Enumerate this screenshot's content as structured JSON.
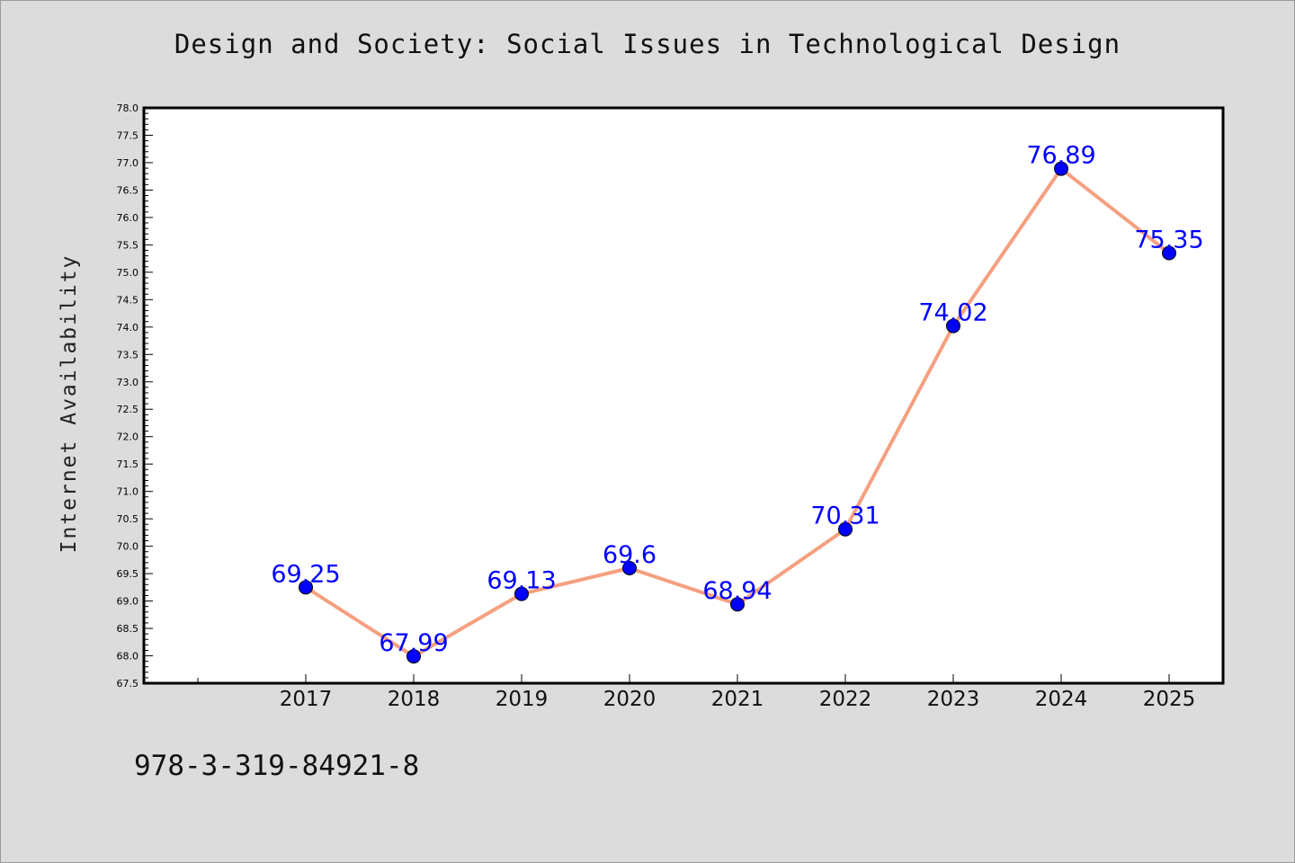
{
  "chart_data": {
    "type": "line",
    "title": "Design and Society: Social Issues in Technological Design",
    "xlabel": "",
    "ylabel": "Internet Availability",
    "categories": [
      "2017",
      "2018",
      "2019",
      "2020",
      "2021",
      "2022",
      "2023",
      "2024",
      "2025"
    ],
    "series": [
      {
        "values": [
          69.25,
          67.99,
          69.13,
          69.6,
          68.94,
          70.31,
          74.02,
          76.89,
          75.35
        ],
        "labels": [
          "69.25",
          "67.99",
          "69.13",
          "69.6",
          "68.94",
          "70.31",
          "74.02",
          "76.89",
          "75.35"
        ]
      }
    ],
    "ylim": [
      67.5,
      78.0
    ],
    "yticks": [
      "67.5",
      "68.0",
      "68.5",
      "69.0",
      "69.5",
      "70.0",
      "70.5",
      "71.0",
      "71.5",
      "72.0",
      "72.5",
      "73.0",
      "73.5",
      "74.0",
      "74.5",
      "75.0",
      "75.5",
      "76.0",
      "76.5",
      "77.0",
      "77.5",
      "78.0"
    ],
    "grid": false,
    "legend": "none",
    "colors": {
      "line": "#f5a080",
      "marker": "#0000ff",
      "data_label": "#0000ff",
      "plot_background": "#ffffff",
      "page_background": "#dcdcdc"
    }
  },
  "footer_code": "978-3-319-84921-8"
}
